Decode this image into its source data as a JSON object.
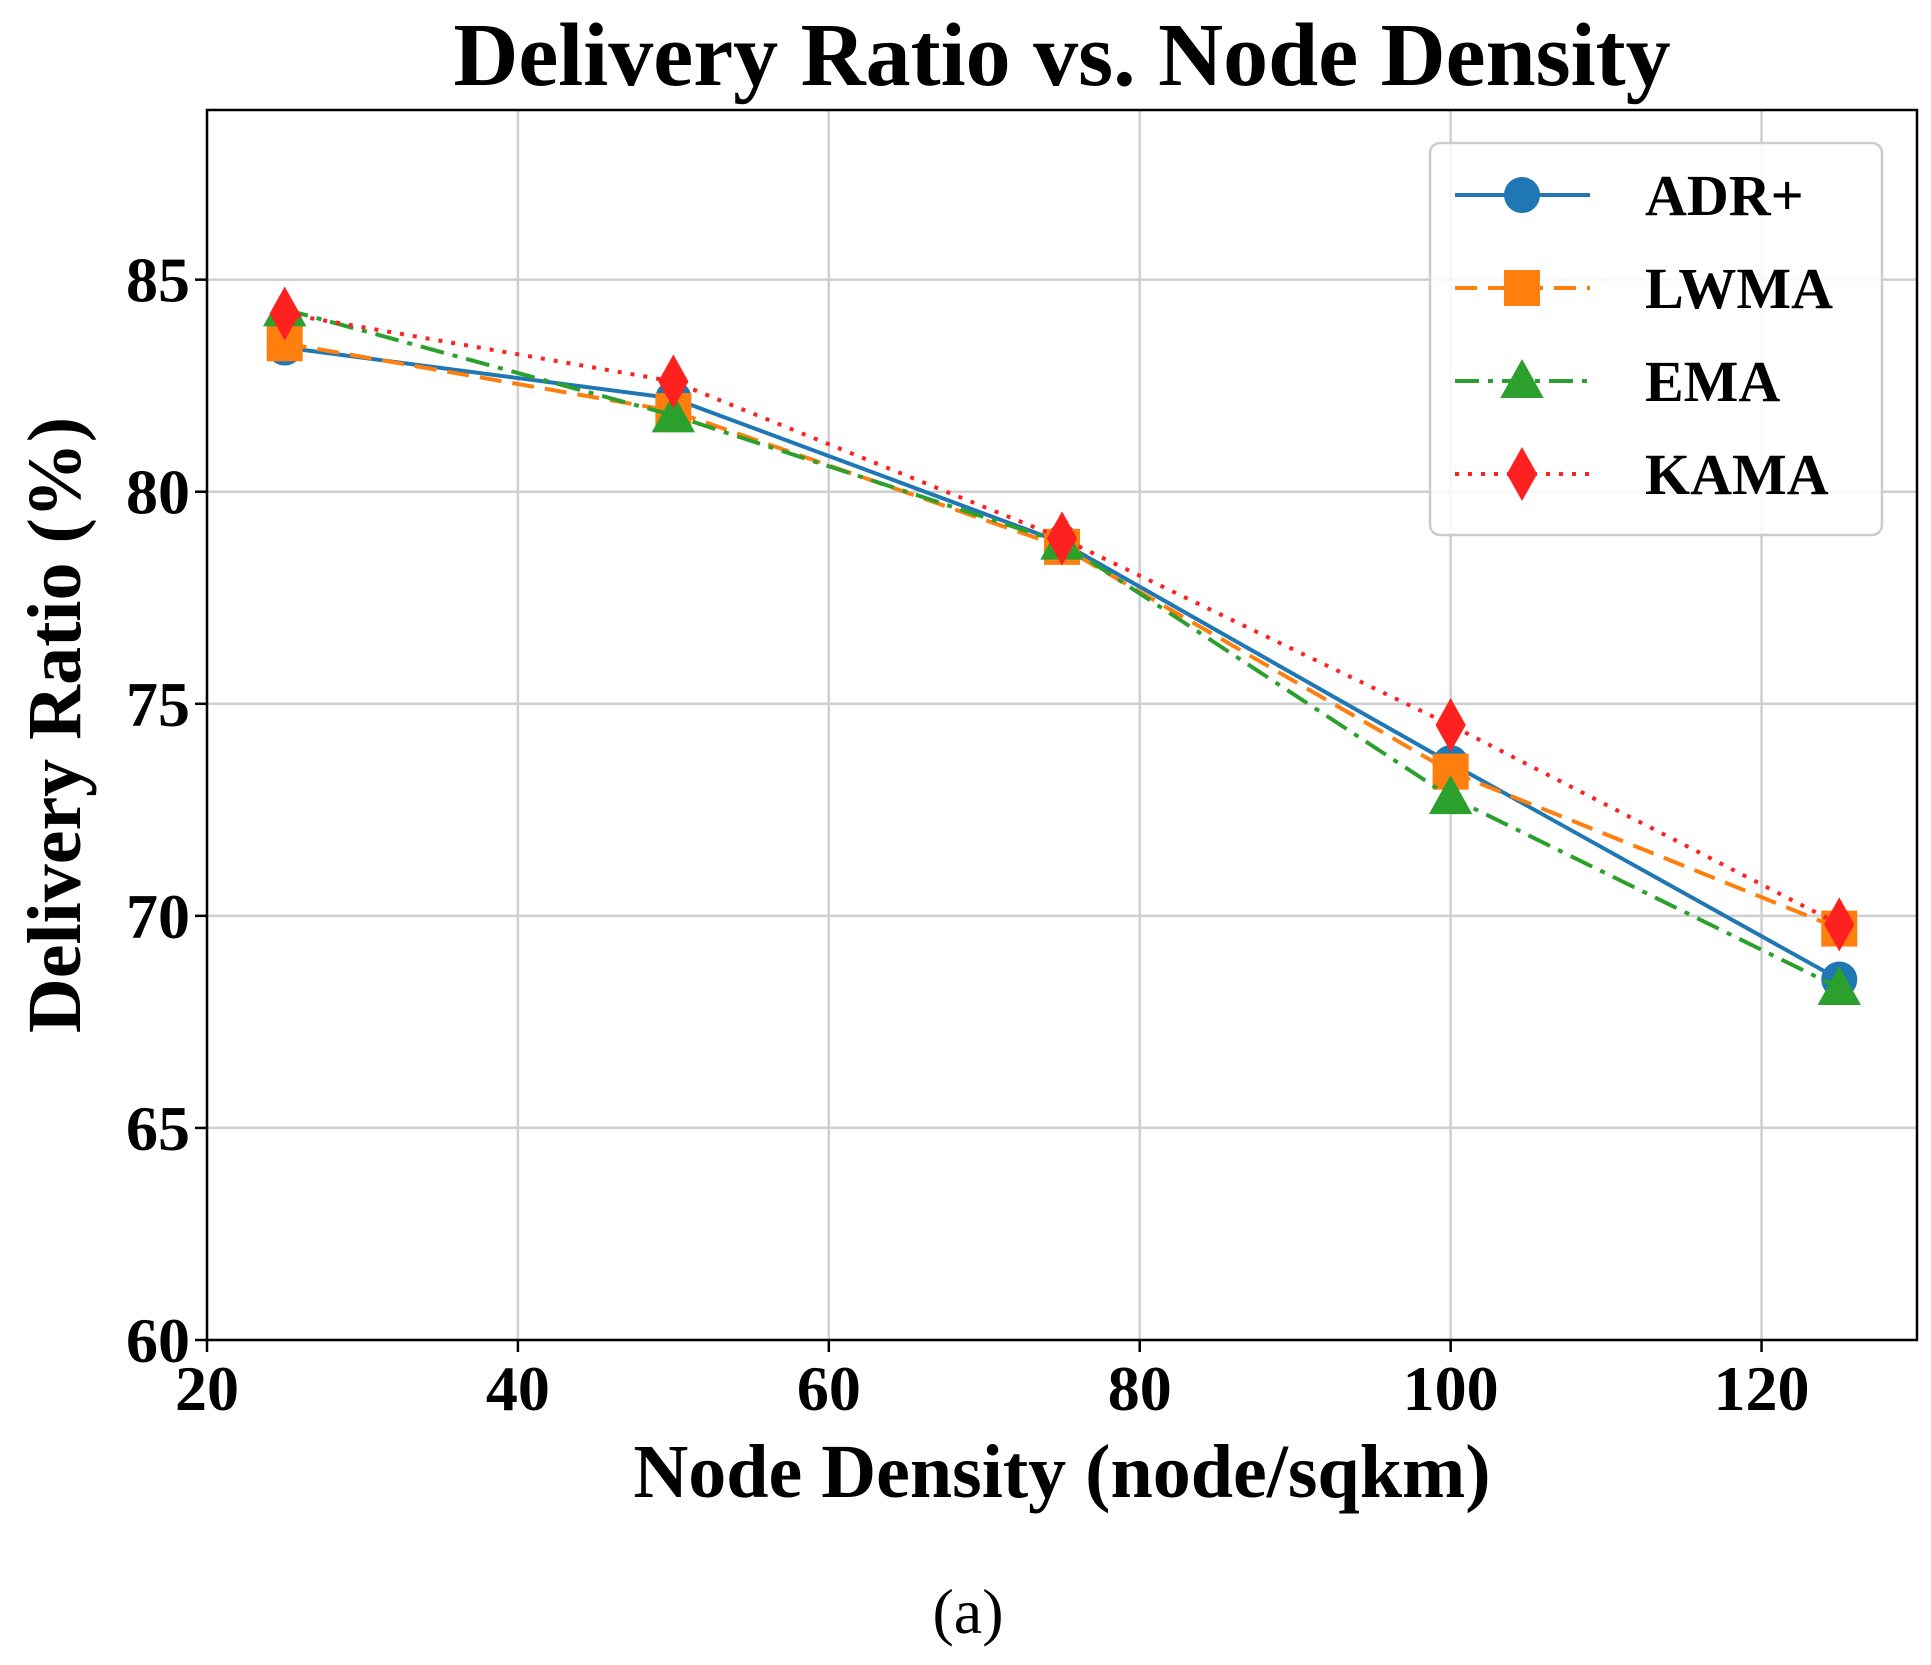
{
  "chart_data": {
    "type": "line",
    "title": "Delivery Ratio vs. Node Density",
    "xlabel": "Node Density (node/sqkm)",
    "ylabel": "Delivery Ratio (%)",
    "xlim": [
      20,
      130
    ],
    "ylim": [
      60,
      89
    ],
    "xticks": [
      20,
      40,
      60,
      80,
      100,
      120
    ],
    "yticks": [
      60,
      65,
      70,
      75,
      80,
      85
    ],
    "grid": true,
    "legend_position": "top-right",
    "x": [
      25,
      50,
      75,
      100,
      125
    ],
    "series": [
      {
        "name": "ADR+",
        "values": [
          83.4,
          82.2,
          78.8,
          73.6,
          68.5
        ],
        "color": "#1f77b4",
        "line": "solid",
        "marker": "circle"
      },
      {
        "name": "LWMA",
        "values": [
          83.5,
          81.9,
          78.7,
          73.4,
          69.7
        ],
        "color": "#ff7f0e",
        "line": "dashed",
        "marker": "square"
      },
      {
        "name": "EMA",
        "values": [
          84.3,
          81.8,
          78.8,
          72.8,
          68.3
        ],
        "color": "#2ca02c",
        "line": "dashdot",
        "marker": "triangle"
      },
      {
        "name": "KAMA",
        "values": [
          84.2,
          82.6,
          78.9,
          74.5,
          69.8
        ],
        "color": "#ff2020",
        "line": "dotted",
        "marker": "diamond"
      }
    ]
  },
  "caption": "(a)"
}
